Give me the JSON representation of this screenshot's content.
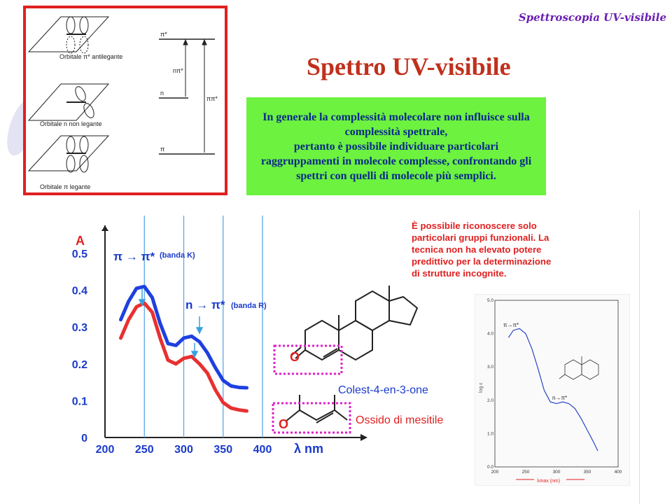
{
  "header": {
    "text": "Spettroscopia UV-visibile"
  },
  "title": "Spettro UV-visibile",
  "info_box": {
    "lines": [
      "In generale la complessità molecolare non influisce sulla",
      "complessità spettrale,",
      "pertanto è possibile individuare particolari",
      "raggruppamenti in molecole complesse, confrontando gli",
      "spettri con quelli di molecole più semplici."
    ]
  },
  "note": {
    "lines": [
      "È possibile riconoscere solo",
      "particolari gruppi funzionali. La",
      "tecnica non ha elevato potere",
      "predittivo per la determinazione",
      "di strutture incognite."
    ]
  },
  "orbital_diagram": {
    "orbitals": [
      {
        "label": "Orbitale π* antilegante"
      },
      {
        "label": "Orbitale n non legante"
      },
      {
        "label": "Orbitale π legante"
      }
    ],
    "levels": [
      "π*",
      "n",
      "π"
    ],
    "transitions": [
      "nπ*",
      "ππ*"
    ]
  },
  "molecules": {
    "cholestenone": "Colest-4-en-3-one",
    "mesityl_oxide": "Ossido di mesitile"
  },
  "chart_data": [
    {
      "type": "line",
      "xlabel": "λ nm",
      "ylabel": "A",
      "xlim": [
        200,
        400
      ],
      "ylim": [
        0,
        0.5
      ],
      "xticks": [
        200,
        250,
        300,
        350,
        400
      ],
      "yticks": [
        0,
        0.1,
        0.2,
        0.3,
        0.4,
        0.5
      ],
      "vertical_lines_x": [
        250,
        300,
        350,
        400
      ],
      "annotations": [
        {
          "text": "π → π*",
          "sub": "(banda K)",
          "x": 250
        },
        {
          "text": "n → π*",
          "sub": "(banda R)",
          "x": 320
        }
      ],
      "series": [
        {
          "color": "#1e40e0",
          "x": [
            220,
            230,
            240,
            250,
            260,
            270,
            280,
            290,
            300,
            310,
            320,
            330,
            340,
            350,
            360,
            370,
            380
          ],
          "y": [
            0.32,
            0.37,
            0.405,
            0.41,
            0.38,
            0.31,
            0.255,
            0.25,
            0.27,
            0.275,
            0.26,
            0.23,
            0.19,
            0.155,
            0.14,
            0.136,
            0.135
          ]
        },
        {
          "color": "#e83030",
          "x": [
            220,
            230,
            240,
            250,
            260,
            270,
            280,
            290,
            300,
            310,
            320,
            330,
            340,
            350,
            360,
            370,
            380
          ],
          "y": [
            0.27,
            0.32,
            0.355,
            0.365,
            0.34,
            0.27,
            0.21,
            0.2,
            0.215,
            0.22,
            0.2,
            0.175,
            0.13,
            0.095,
            0.08,
            0.075,
            0.072
          ]
        }
      ]
    },
    {
      "type": "line",
      "xlabel": "λmax (nm)",
      "ylabel": "log ε",
      "xlim": [
        200,
        400
      ],
      "ylim": [
        0,
        5
      ],
      "xticks": [
        200,
        250,
        300,
        350,
        400
      ],
      "yticks": [
        0.0,
        1.0,
        2.0,
        3.0,
        4.0,
        5.0
      ],
      "annotations": [
        {
          "text": "π→π*",
          "x": 240
        },
        {
          "text": "n→π*",
          "x": 315
        }
      ],
      "series": [
        {
          "color": "#2a44c8",
          "x": [
            222,
            230,
            240,
            250,
            260,
            270,
            280,
            290,
            300,
            310,
            320,
            330,
            340,
            350,
            360,
            367
          ],
          "y": [
            3.88,
            4.1,
            4.15,
            4.0,
            3.55,
            2.95,
            2.3,
            1.95,
            1.9,
            1.95,
            1.9,
            1.75,
            1.45,
            1.1,
            0.75,
            0.48
          ]
        }
      ]
    }
  ]
}
